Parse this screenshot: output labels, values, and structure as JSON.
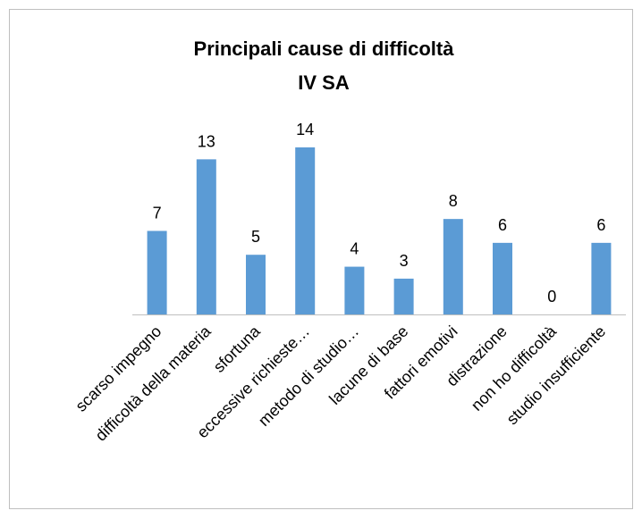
{
  "chart_data": {
    "type": "bar",
    "title": "Principali cause di difficoltà",
    "subtitle": "IV SA",
    "categories": [
      "scarso impegno",
      "difficoltà della materia",
      "sfortuna",
      "eccessive richieste…",
      "metodo di studio…",
      "lacune di base",
      "fattori emotivi",
      "distrazione",
      "non ho difficoltà",
      "studio insufficiente"
    ],
    "values": [
      7,
      13,
      5,
      14,
      4,
      3,
      8,
      6,
      0,
      6
    ],
    "color": "#5b9bd5"
  }
}
